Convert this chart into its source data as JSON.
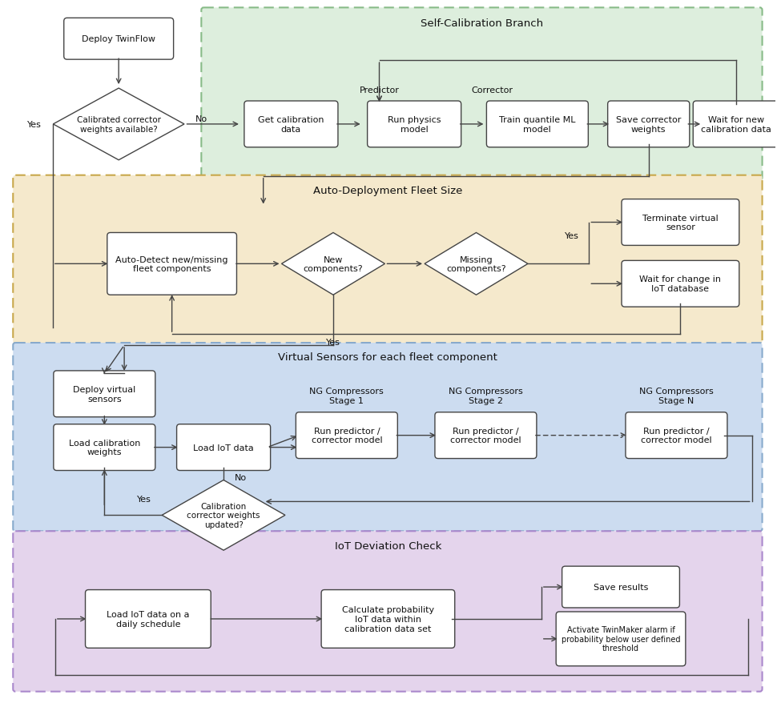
{
  "fig_width": 9.75,
  "fig_height": 8.79,
  "bg_color": "#ffffff",
  "section_colors": {
    "calibration": "#ddeedd",
    "deployment": "#f5e9cc",
    "virtual": "#ccdcf0",
    "iot": "#e4d4ec"
  },
  "section_edge_colors": {
    "calibration": "#88bb88",
    "deployment": "#c8a84b",
    "virtual": "#88aacc",
    "iot": "#aa88cc"
  },
  "section_titles": {
    "calibration": "Self-Calibration Branch",
    "deployment": "Auto-Deployment Fleet Size",
    "virtual": "Virtual Sensors for each fleet component",
    "iot": "IoT Deviation Check"
  },
  "box_color": "#ffffff",
  "box_edge": "#444444",
  "arrow_color": "#444444",
  "text_color": "#111111",
  "font_size": 8,
  "label_font_size": 9
}
